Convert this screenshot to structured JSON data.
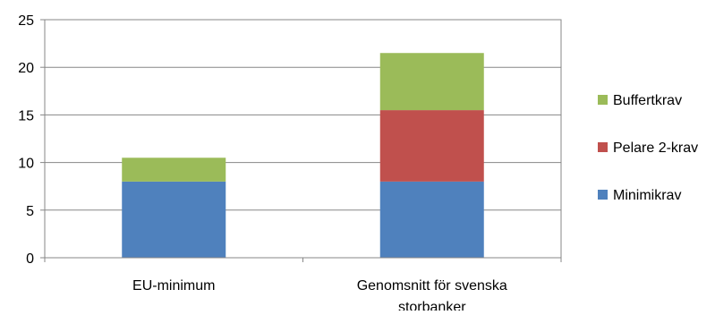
{
  "chart_data": {
    "type": "bar",
    "stacked": true,
    "categories": [
      "EU-minimum",
      "Genomsnitt för svenska storbanker"
    ],
    "category_label_lines": [
      [
        "EU-minimum"
      ],
      [
        "Genomsnitt för svenska",
        "storbanker"
      ]
    ],
    "series": [
      {
        "name": "Minimikrav",
        "values": [
          8,
          8
        ],
        "color": "#4f81bd"
      },
      {
        "name": "Pelare 2-krav",
        "values": [
          0,
          7.5
        ],
        "color": "#c0504d"
      },
      {
        "name": "Buffertkrav",
        "values": [
          2.5,
          6
        ],
        "color": "#9bbb59"
      }
    ],
    "yticks": [
      0,
      5,
      10,
      15,
      20,
      25
    ],
    "ylim": [
      0,
      25
    ],
    "title": "",
    "xlabel": "",
    "ylabel": "",
    "grid": true,
    "legend_position": "right",
    "legend_order": [
      "Buffertkrav",
      "Pelare 2-krav",
      "Minimikrav"
    ]
  }
}
